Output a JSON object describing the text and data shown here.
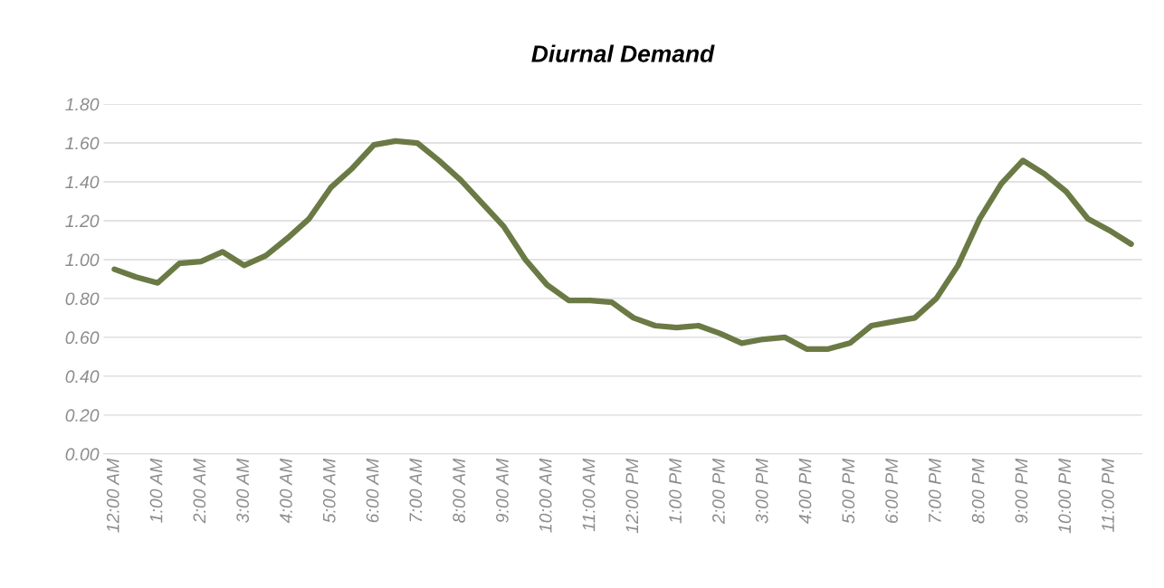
{
  "chart_data": {
    "type": "line",
    "title": "Diurnal Demand",
    "categories": [
      "12:00 AM",
      null,
      "1:00 AM",
      null,
      "2:00 AM",
      null,
      "3:00 AM",
      null,
      "4:00 AM",
      null,
      "5:00 AM",
      null,
      "6:00 AM",
      null,
      "7:00 AM",
      null,
      "8:00 AM",
      null,
      "9:00 AM",
      null,
      "10:00 AM",
      null,
      "11:00 AM",
      null,
      "12:00 PM",
      null,
      "1:00 PM",
      null,
      "2:00 PM",
      null,
      "3:00 PM",
      null,
      "4:00 PM",
      null,
      "5:00 PM",
      null,
      "6:00 PM",
      null,
      "7:00 PM",
      null,
      "8:00 PM",
      null,
      "9:00 PM",
      null,
      "10:00 PM",
      null,
      "11:00 PM",
      null
    ],
    "series": [
      {
        "color": "#6b7a45",
        "values": [
          0.95,
          0.91,
          0.88,
          0.98,
          0.99,
          1.04,
          0.97,
          1.02,
          1.11,
          1.21,
          1.37,
          1.47,
          1.59,
          1.61,
          1.6,
          1.51,
          1.41,
          1.29,
          1.17,
          1.0,
          0.87,
          0.79,
          0.79,
          0.78,
          0.7,
          0.66,
          0.65,
          0.66,
          0.62,
          0.57,
          0.59,
          0.6,
          0.54,
          0.54,
          0.57,
          0.66,
          0.68,
          0.7,
          0.8,
          0.97,
          1.21,
          1.39,
          1.51,
          1.44,
          1.35,
          1.21,
          1.15,
          1.08
        ]
      }
    ],
    "ylim": [
      0,
      1.8
    ],
    "yticks": [
      {
        "value": 0,
        "label": "0.00"
      },
      {
        "value": 0.2,
        "label": "0.20"
      },
      {
        "value": 0.4,
        "label": "0.40"
      },
      {
        "value": 0.6,
        "label": "0.60"
      },
      {
        "value": 0.8,
        "label": "0.80"
      },
      {
        "value": 1.0,
        "label": "1.00"
      },
      {
        "value": 1.2,
        "label": "1.20"
      },
      {
        "value": 1.4,
        "label": "1.40"
      },
      {
        "value": 1.6,
        "label": "1.60"
      },
      {
        "value": 1.8,
        "label": "1.80"
      }
    ],
    "grid": "y",
    "line_style": "solid"
  }
}
